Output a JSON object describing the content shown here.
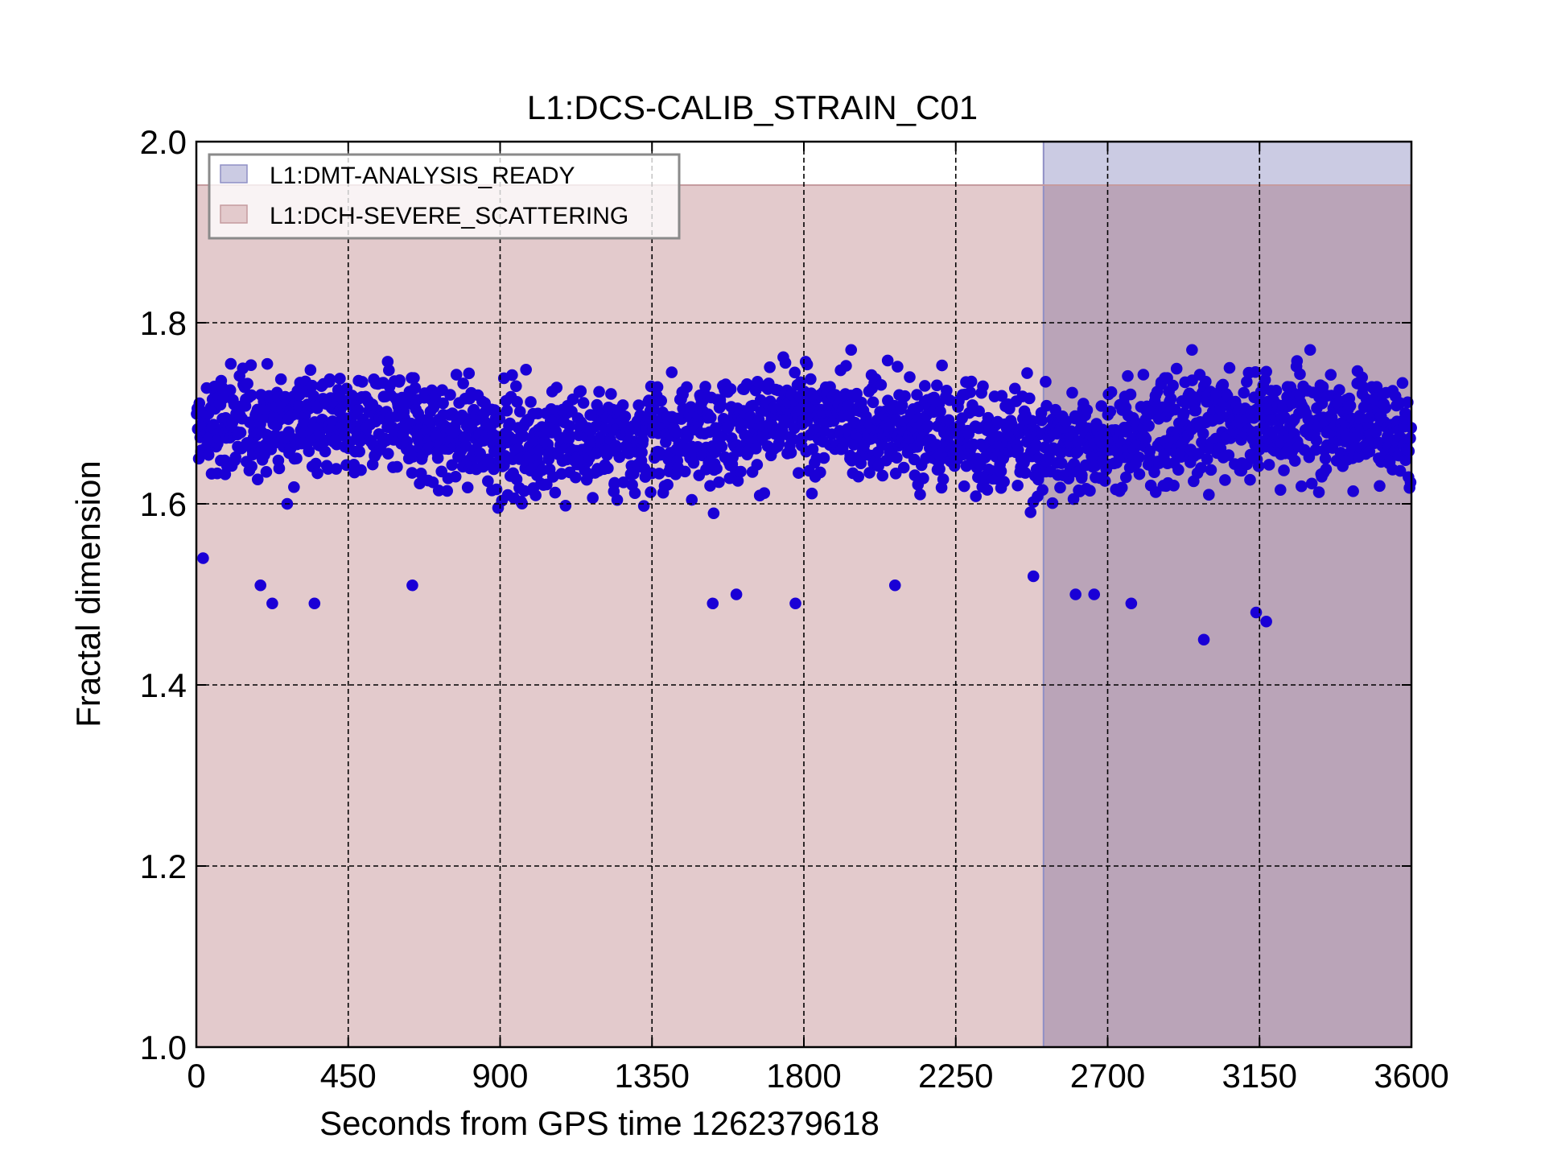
{
  "colors": {
    "background": "#ffffff",
    "point": "#1a00d6",
    "analysis_ready_fill": "#cbcbe3",
    "scattering_fill": "#e3cacc",
    "overlap_fill": "#baa4b8",
    "analysis_ready_edge": "#8f8fc5",
    "scattering_edge": "#c59b9f",
    "grid": "#000000"
  },
  "chart_data": {
    "type": "scatter",
    "title": "L1:DCS-CALIB_STRAIN_C01",
    "xlabel": "Seconds from GPS time 1262379618",
    "ylabel": "Fractal dimension",
    "xlim": [
      0,
      3600
    ],
    "ylim": [
      1.0,
      2.0
    ],
    "xticks": [
      "0",
      "450",
      "900",
      "1350",
      "1800",
      "2250",
      "2700",
      "3150",
      "3600"
    ],
    "yticks": [
      "1.0",
      "1.2",
      "1.4",
      "1.6",
      "1.8",
      "2.0"
    ],
    "grid": true,
    "legend_position": "top-left",
    "legend": [
      {
        "label": "L1:DMT-ANALYSIS_READY",
        "color": "#cbcbe3"
      },
      {
        "label": "L1:DCH-SEVERE_SCATTERING",
        "color": "#e3cacc"
      }
    ],
    "segments": [
      {
        "name": "L1:DMT-ANALYSIS_READY",
        "x_start": 2510,
        "x_end": 3600,
        "y_range": [
          1.0,
          2.0
        ]
      },
      {
        "name": "L1:DCH-SEVERE_SCATTERING",
        "x_start": 0,
        "x_end": 3600,
        "y_range": [
          1.0,
          1.952
        ]
      }
    ],
    "series": [
      {
        "marker": "circle",
        "color": "#1a00d6",
        "approx_point_count": 3600,
        "x_spacing": 1,
        "typical_range": [
          1.6,
          1.76
        ],
        "median": 1.68,
        "notable_points": [
          {
            "x": 20,
            "y": 1.54
          },
          {
            "x": 190,
            "y": 1.51
          },
          {
            "x": 225,
            "y": 1.49
          },
          {
            "x": 350,
            "y": 1.49
          },
          {
            "x": 640,
            "y": 1.51
          },
          {
            "x": 1530,
            "y": 1.49
          },
          {
            "x": 1600,
            "y": 1.5
          },
          {
            "x": 1775,
            "y": 1.49
          },
          {
            "x": 1940,
            "y": 1.77
          },
          {
            "x": 2070,
            "y": 1.51
          },
          {
            "x": 2480,
            "y": 1.52
          },
          {
            "x": 2605,
            "y": 1.5
          },
          {
            "x": 2660,
            "y": 1.5
          },
          {
            "x": 2770,
            "y": 1.49
          },
          {
            "x": 2950,
            "y": 1.77
          },
          {
            "x": 2985,
            "y": 1.45
          },
          {
            "x": 3140,
            "y": 1.48
          },
          {
            "x": 3170,
            "y": 1.47
          },
          {
            "x": 3300,
            "y": 1.77
          }
        ]
      }
    ]
  }
}
